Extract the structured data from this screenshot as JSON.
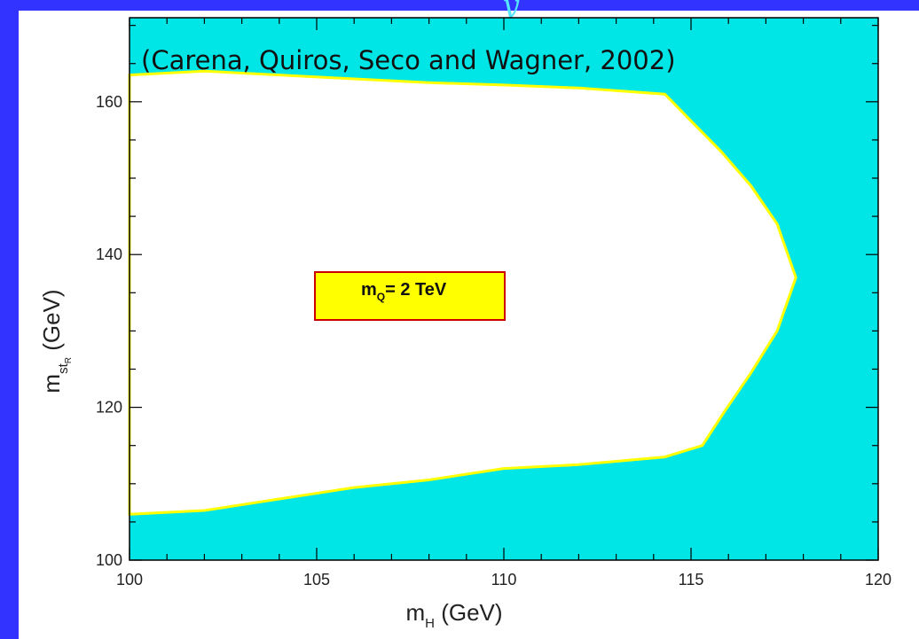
{
  "top_glyph": "y",
  "chart_data": {
    "type": "area",
    "citation": "(Carena, Quiros, Seco and Wagner, 2002)",
    "xlabel": {
      "main": "m",
      "subscript": "H",
      "unit": " (GeV)"
    },
    "ylabel": {
      "main": "m",
      "subscript": "st",
      "subsubscript": "R",
      "unit": " (GeV)"
    },
    "xlim": [
      100,
      120
    ],
    "ylim": [
      100,
      171
    ],
    "x_ticks": [
      100,
      105,
      110,
      115,
      120
    ],
    "y_ticks": [
      100,
      120,
      140,
      160
    ],
    "x_tick_labels": [
      "100",
      "105",
      "110",
      "115",
      "120"
    ],
    "y_tick_labels": [
      "100",
      "120",
      "140",
      "160"
    ],
    "annotation": {
      "main": "m",
      "subscript": "Q",
      "rest": "= 2 TeV"
    },
    "colors": {
      "excluded_fill": "#00e5e5",
      "allowed_fill": "#ffffff",
      "boundary": "#ffff00",
      "box_fill": "#ffff00",
      "box_border": "#cc0000"
    },
    "allowed_region_boundary": {
      "x": [
        100,
        102,
        104,
        106,
        108,
        110,
        112,
        114.3,
        115,
        115.8,
        116.6,
        117.3,
        117.8,
        117.3,
        116.6,
        115.9,
        115.3,
        114.3,
        112,
        110,
        108,
        106,
        104,
        102,
        100
      ],
      "y": [
        163.5,
        164,
        163.5,
        163,
        162.5,
        162.2,
        161.8,
        161,
        157.5,
        153.5,
        149,
        144,
        137,
        130,
        124.5,
        119.5,
        115,
        113.5,
        112.5,
        112,
        110.5,
        109.5,
        108,
        106.5,
        106
      ]
    }
  }
}
